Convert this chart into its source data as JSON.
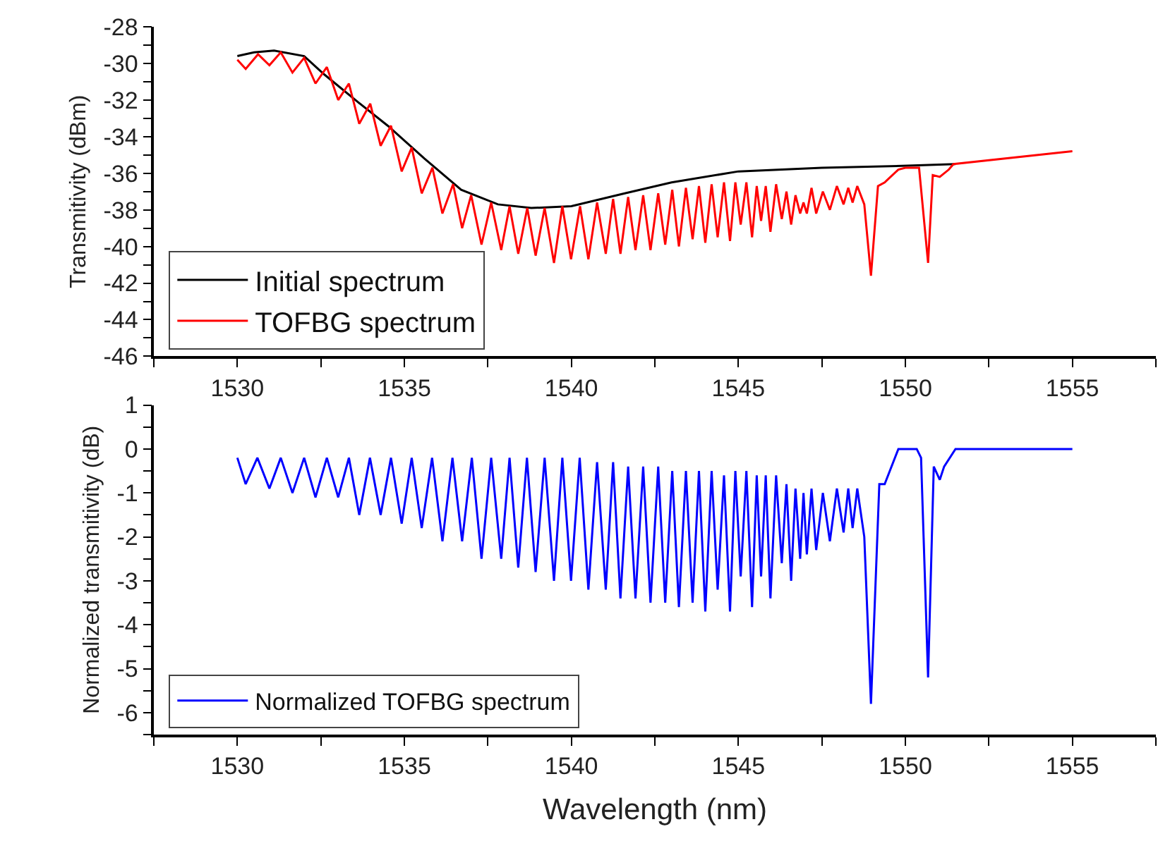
{
  "chart_data": [
    {
      "type": "line",
      "ylabel": "Transmitivity (dBm)",
      "legend": "bottom left",
      "line_style": "solid",
      "xlim": [
        1527.5,
        1557.5
      ],
      "xticks": [
        {
          "value": 1527.5,
          "label": null
        },
        1530,
        {
          "value": 1532.5,
          "label": null
        },
        1535,
        {
          "value": 1537.5,
          "label": null
        },
        1540,
        {
          "value": 1542.5,
          "label": null
        },
        1545,
        {
          "value": 1547.5,
          "label": null
        },
        1550,
        {
          "value": 1552.5,
          "label": null
        },
        1555,
        {
          "value": 1557.5,
          "label": null
        }
      ],
      "ylim": [
        -46,
        -28
      ],
      "yticks": [
        -46,
        {
          "value": -45,
          "label": null
        },
        -44,
        {
          "value": -43,
          "label": null
        },
        -42,
        {
          "value": -41,
          "label": null
        },
        -40,
        {
          "value": -39,
          "label": null
        },
        -38,
        {
          "value": -37,
          "label": null
        },
        -36,
        {
          "value": -35,
          "label": null
        },
        -34,
        {
          "value": -33,
          "label": null
        },
        -32,
        {
          "value": -31,
          "label": null
        },
        -30,
        {
          "value": -29,
          "label": null
        },
        -28
      ],
      "series": [
        {
          "name": "Initial spectrum",
          "color": "#000000",
          "x": [
            1530,
            1530.5,
            1531.1,
            1532,
            1532.6,
            1533.6,
            1534.5,
            1535.6,
            1536.7,
            1537.8,
            1538.8,
            1540,
            1541.6,
            1543,
            1545,
            1547.5,
            1549.9,
            1551.5
          ],
          "values": [
            -29.6,
            -29.4,
            -29.3,
            -29.6,
            -30.6,
            -32.1,
            -33.4,
            -35.2,
            -36.9,
            -37.7,
            -37.9,
            -37.8,
            -37.1,
            -36.5,
            -35.9,
            -35.7,
            -35.6,
            -35.5
          ]
        },
        {
          "name": "TOFBG spectrum",
          "color": "#ff0000",
          "x": [
            1530,
            1530.25,
            1530.62,
            1530.96,
            1531.3,
            1531.65,
            1532.0,
            1532.34,
            1532.68,
            1533.02,
            1533.34,
            1533.65,
            1533.98,
            1534.29,
            1534.6,
            1534.92,
            1535.22,
            1535.52,
            1535.84,
            1536.14,
            1536.46,
            1536.73,
            1537.0,
            1537.31,
            1537.6,
            1537.9,
            1538.15,
            1538.41,
            1538.68,
            1538.93,
            1539.2,
            1539.48,
            1539.73,
            1539.99,
            1540.26,
            1540.51,
            1540.77,
            1541.03,
            1541.25,
            1541.47,
            1541.7,
            1541.92,
            1542.15,
            1542.37,
            1542.6,
            1542.81,
            1543.02,
            1543.22,
            1543.43,
            1543.63,
            1543.82,
            1544.01,
            1544.2,
            1544.38,
            1544.57,
            1544.75,
            1544.91,
            1545.07,
            1545.24,
            1545.41,
            1545.55,
            1545.68,
            1545.82,
            1545.96,
            1546.13,
            1546.3,
            1546.44,
            1546.58,
            1546.71,
            1546.85,
            1546.95,
            1547.05,
            1547.19,
            1547.33,
            1547.53,
            1547.74,
            1547.95,
            1548.15,
            1548.29,
            1548.42,
            1548.56,
            1548.77,
            1548.97,
            1549.18,
            1549.38,
            1549.79,
            1550.0,
            1550.41,
            1550.68,
            1550.82,
            1551.03,
            1551.3,
            1551.44,
            1555
          ],
          "values": [
            -29.8,
            -30.3,
            -29.5,
            -30.1,
            -29.4,
            -30.5,
            -29.7,
            -31.1,
            -30.2,
            -32.0,
            -31.1,
            -33.3,
            -32.2,
            -34.5,
            -33.4,
            -35.9,
            -34.6,
            -37.1,
            -35.7,
            -38.2,
            -36.6,
            -39.0,
            -37.2,
            -39.9,
            -37.6,
            -40.2,
            -37.8,
            -40.4,
            -37.9,
            -40.5,
            -37.9,
            -40.9,
            -37.8,
            -40.7,
            -37.8,
            -40.7,
            -37.6,
            -40.4,
            -37.4,
            -40.4,
            -37.3,
            -40.2,
            -37.2,
            -40.2,
            -37.1,
            -39.9,
            -36.9,
            -40.0,
            -36.8,
            -39.6,
            -36.7,
            -39.8,
            -36.6,
            -39.5,
            -36.5,
            -39.7,
            -36.5,
            -38.8,
            -36.5,
            -39.5,
            -36.7,
            -38.6,
            -36.7,
            -39.2,
            -36.6,
            -38.5,
            -37.0,
            -38.8,
            -37.2,
            -38.2,
            -37.6,
            -38.2,
            -36.8,
            -38.2,
            -37.0,
            -38.0,
            -36.7,
            -37.7,
            -36.8,
            -37.6,
            -36.7,
            -37.7,
            -41.6,
            -36.7,
            -36.5,
            -35.8,
            -35.7,
            -35.7,
            -40.9,
            -36.1,
            -36.2,
            -35.8,
            -35.5,
            -34.8
          ]
        }
      ]
    },
    {
      "type": "line",
      "xlabel": "Wavelength (nm)",
      "ylabel": "Normalized transmitivity (dB)",
      "legend": "bottom left",
      "line_style": "solid",
      "xlim": [
        1527.5,
        1557.5
      ],
      "xticks": [
        {
          "value": 1527.5,
          "label": null
        },
        1530,
        {
          "value": 1532.5,
          "label": null
        },
        1535,
        {
          "value": 1537.5,
          "label": null
        },
        1540,
        {
          "value": 1542.5,
          "label": null
        },
        1545,
        {
          "value": 1547.5,
          "label": null
        },
        1550,
        {
          "value": 1552.5,
          "label": null
        },
        1555,
        {
          "value": 1557.5,
          "label": null
        }
      ],
      "ylim": [
        -6.5,
        1
      ],
      "yticks": [
        {
          "value": -6.5,
          "label": null
        },
        -6,
        {
          "value": -5.5,
          "label": null
        },
        -5,
        {
          "value": -4.5,
          "label": null
        },
        -4,
        {
          "value": -3.5,
          "label": null
        },
        -3,
        {
          "value": -2.5,
          "label": null
        },
        -2,
        {
          "value": -1.5,
          "label": null
        },
        -1,
        {
          "value": -0.5,
          "label": null
        },
        0,
        {
          "value": 0.5,
          "label": null
        },
        1
      ],
      "series": [
        {
          "name": "Normalized TOFBG spectrum",
          "color": "#0000ff",
          "x": [
            1530,
            1530.25,
            1530.6,
            1530.96,
            1531.3,
            1531.65,
            1532.0,
            1532.34,
            1532.68,
            1533.02,
            1533.34,
            1533.65,
            1533.97,
            1534.29,
            1534.6,
            1534.92,
            1535.22,
            1535.52,
            1535.83,
            1536.14,
            1536.44,
            1536.73,
            1537.02,
            1537.31,
            1537.6,
            1537.9,
            1538.15,
            1538.41,
            1538.67,
            1538.93,
            1539.2,
            1539.48,
            1539.73,
            1539.99,
            1540.25,
            1540.51,
            1540.77,
            1541.03,
            1541.25,
            1541.47,
            1541.7,
            1541.92,
            1542.15,
            1542.37,
            1542.6,
            1542.81,
            1543.02,
            1543.22,
            1543.43,
            1543.63,
            1543.82,
            1544.01,
            1544.2,
            1544.38,
            1544.57,
            1544.75,
            1544.91,
            1545.07,
            1545.24,
            1545.41,
            1545.55,
            1545.68,
            1545.82,
            1545.96,
            1546.13,
            1546.3,
            1546.44,
            1546.58,
            1546.71,
            1546.85,
            1546.95,
            1547.05,
            1547.19,
            1547.33,
            1547.53,
            1547.74,
            1547.95,
            1548.15,
            1548.29,
            1548.42,
            1548.56,
            1548.77,
            1548.97,
            1549.22,
            1549.38,
            1549.79,
            1550.0,
            1550.34,
            1550.47,
            1550.68,
            1550.85,
            1551.03,
            1551.16,
            1551.5,
            1555
          ],
          "values": [
            -0.2,
            -0.8,
            -0.2,
            -0.9,
            -0.2,
            -1.0,
            -0.2,
            -1.1,
            -0.2,
            -1.1,
            -0.2,
            -1.5,
            -0.2,
            -1.5,
            -0.2,
            -1.7,
            -0.2,
            -1.8,
            -0.2,
            -2.1,
            -0.2,
            -2.1,
            -0.2,
            -2.5,
            -0.2,
            -2.5,
            -0.2,
            -2.7,
            -0.2,
            -2.8,
            -0.2,
            -3.0,
            -0.2,
            -3.0,
            -0.2,
            -3.2,
            -0.3,
            -3.2,
            -0.3,
            -3.4,
            -0.4,
            -3.4,
            -0.4,
            -3.5,
            -0.4,
            -3.5,
            -0.5,
            -3.6,
            -0.5,
            -3.5,
            -0.5,
            -3.7,
            -0.5,
            -3.2,
            -0.6,
            -3.7,
            -0.5,
            -2.9,
            -0.5,
            -3.6,
            -0.6,
            -2.9,
            -0.6,
            -3.4,
            -0.6,
            -2.6,
            -0.8,
            -3.0,
            -0.9,
            -2.5,
            -1.0,
            -2.4,
            -0.9,
            -2.3,
            -1.0,
            -2.1,
            -0.9,
            -1.9,
            -0.9,
            -1.8,
            -0.9,
            -2.0,
            -5.8,
            -0.8,
            -0.8,
            0.0,
            0.0,
            0.0,
            -0.2,
            -5.2,
            -0.4,
            -0.7,
            -0.4,
            0.0,
            0.0
          ]
        }
      ]
    }
  ]
}
